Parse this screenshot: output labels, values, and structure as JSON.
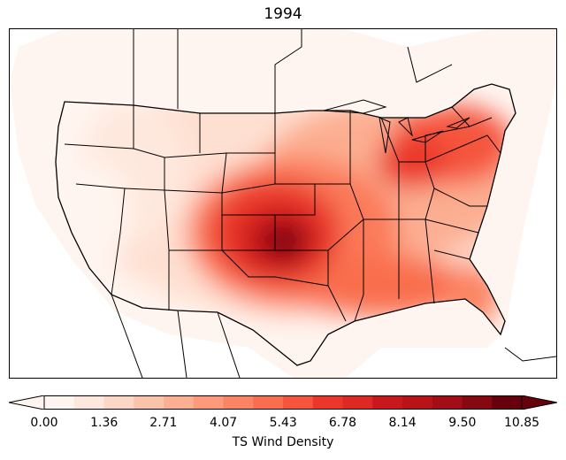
{
  "figure": {
    "title": "1994"
  },
  "map": {
    "region": "Contiguous United States",
    "variable": "TS Wind Density",
    "density_peak": {
      "location": "central Oklahoma / southern Kansas",
      "value_level": "10.85"
    },
    "secondary_maxima": [
      "Ohio",
      "Pennsylvania–Maryland corridor",
      "Gulf coast (Louisiana–Alabama–Florida panhandle)"
    ],
    "low_density_regions": [
      "West (Pacific coast, Great Basin)",
      "Northern Rockies",
      "Southwest desert"
    ]
  },
  "colorbar": {
    "label": "TS Wind Density",
    "min": 0.0,
    "max": 10.85,
    "levels": 16,
    "extend": "both",
    "colormap": "Reds",
    "colors": [
      "#fff5f0",
      "#fee8dd",
      "#fdd7c6",
      "#fcc3ab",
      "#fcaf93",
      "#fc9a7b",
      "#fb8464",
      "#f96e4e",
      "#f5553c",
      "#eb372a",
      "#dc2924",
      "#c9181d",
      "#b71319",
      "#a10e15",
      "#860811",
      "#67000d"
    ],
    "tick_labels": [
      "0.00",
      "1.36",
      "2.71",
      "4.07",
      "5.43",
      "6.78",
      "8.14",
      "9.50",
      "10.85"
    ],
    "tick_values": [
      0.0,
      1.36,
      2.71,
      4.07,
      5.43,
      6.78,
      8.14,
      9.5,
      10.85
    ]
  }
}
